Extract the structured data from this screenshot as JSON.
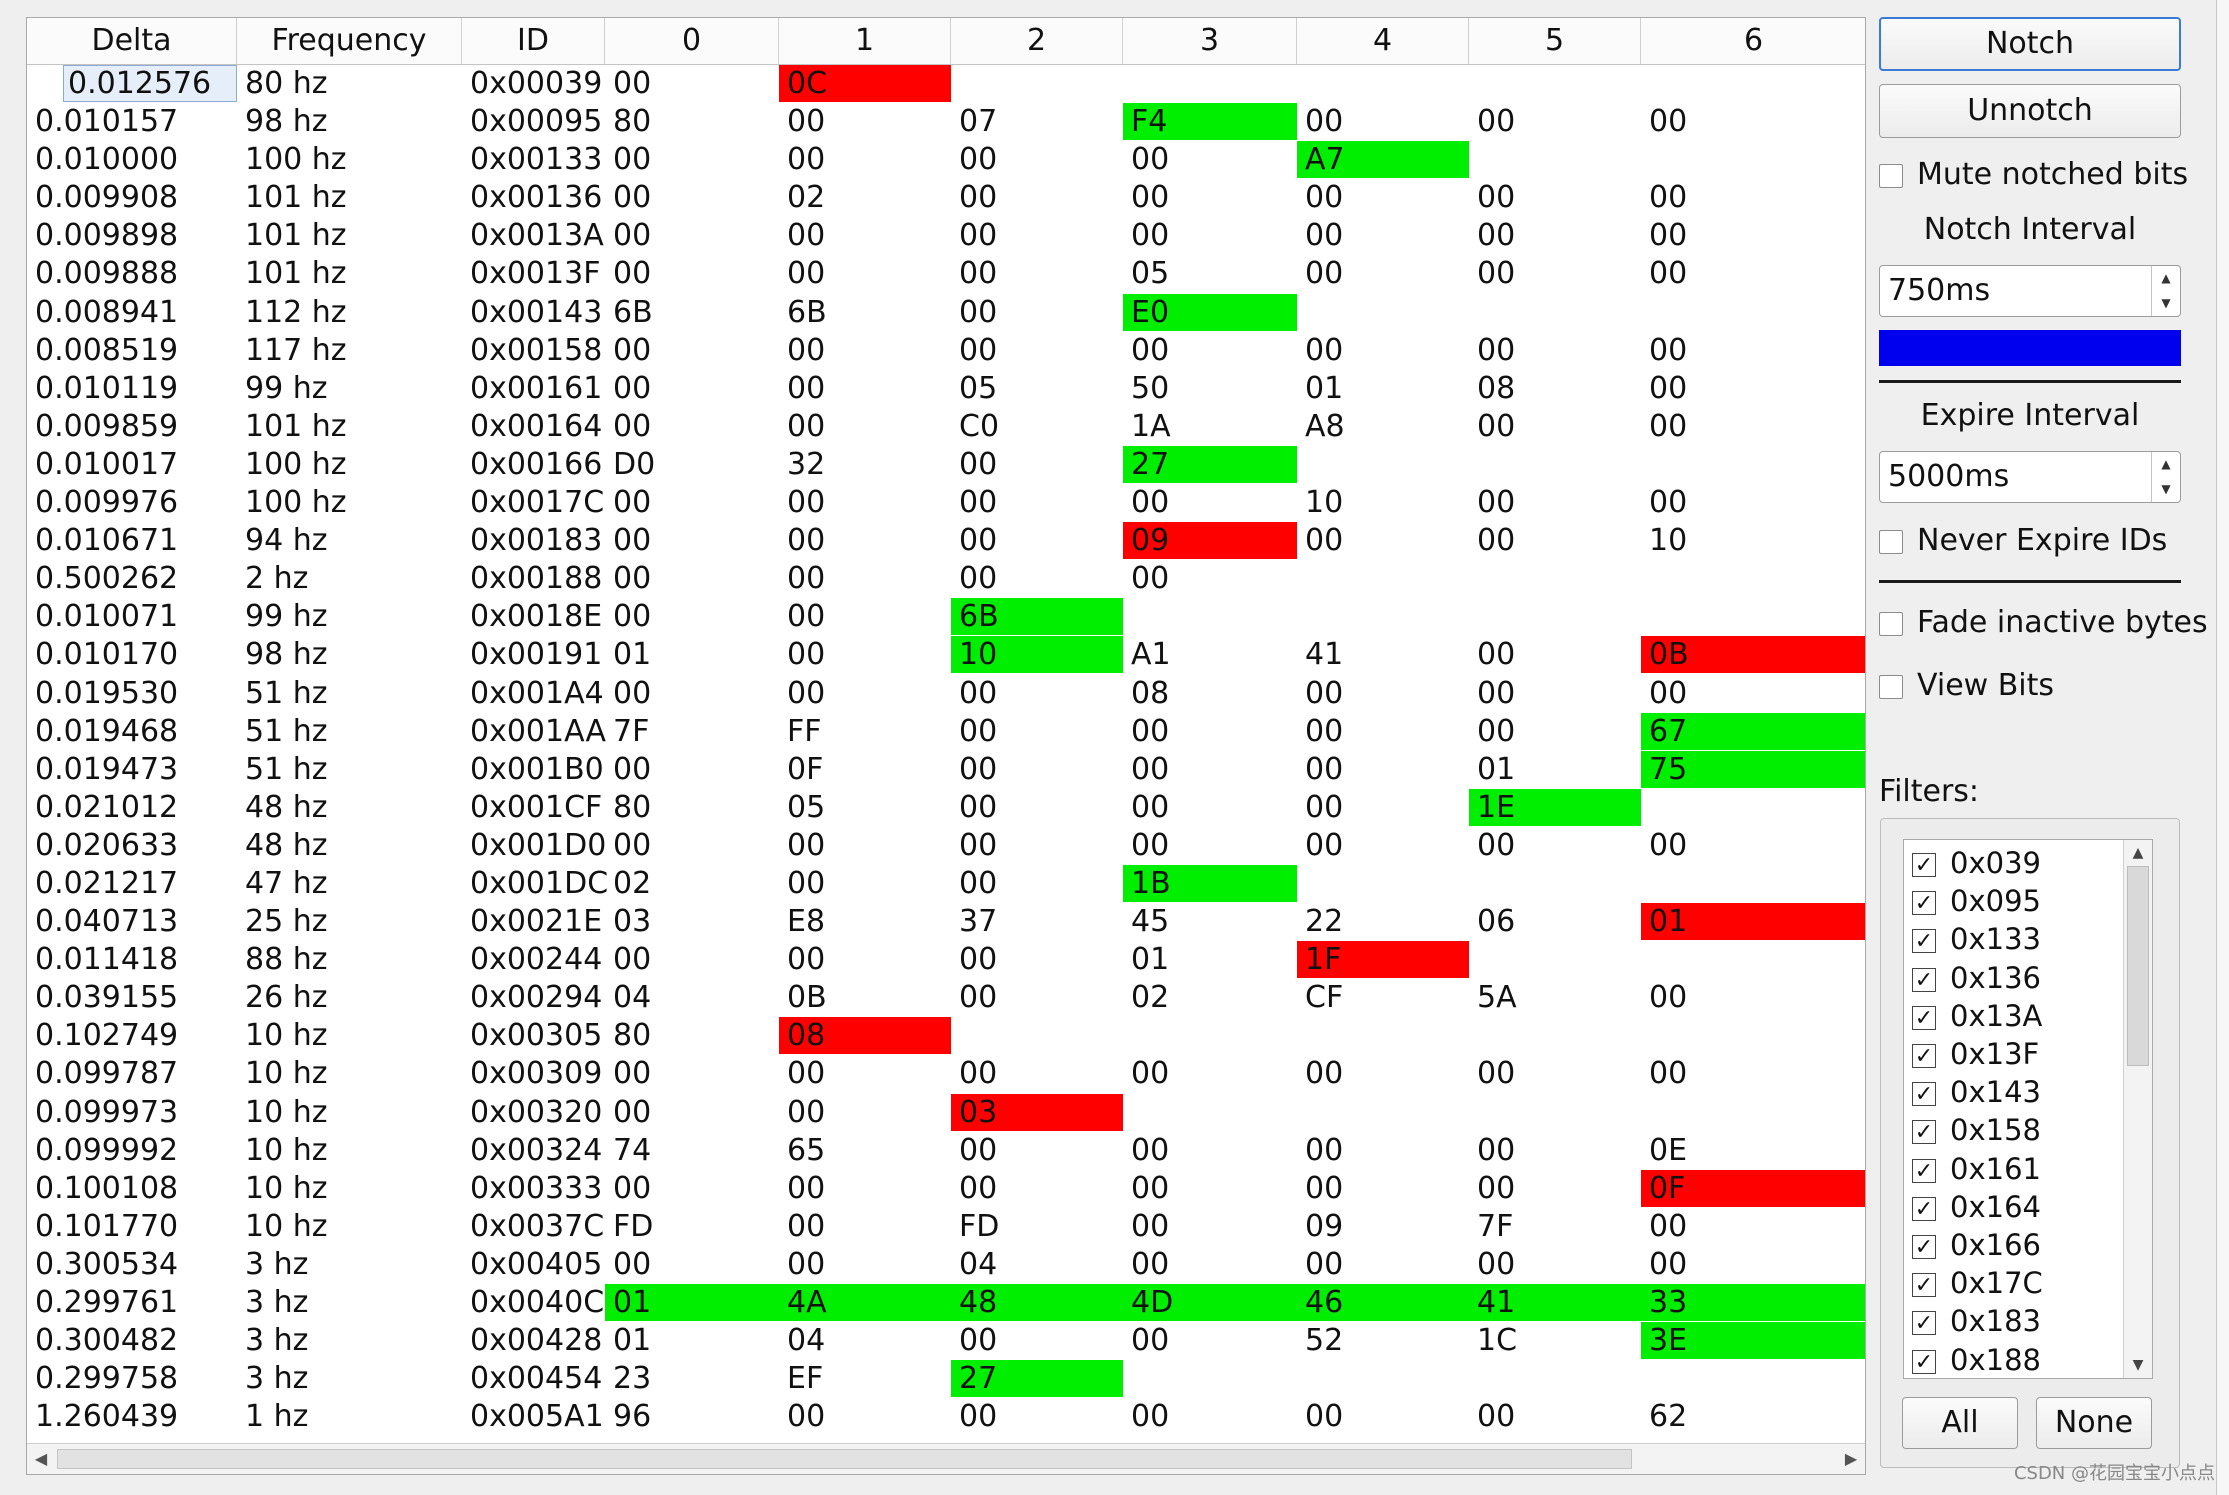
{
  "columns": [
    "Delta",
    "Frequency",
    "ID",
    "0",
    "1",
    "2",
    "3",
    "4",
    "5",
    "6"
  ],
  "rows": [
    {
      "delta": "0.012576",
      "freq": "80 hz",
      "id": "0x00039",
      "bytes": [
        [
          "00",
          ""
        ],
        [
          "0C",
          "red"
        ],
        [
          "",
          ""
        ],
        [
          "",
          ""
        ],
        [
          "",
          ""
        ],
        [
          "",
          ""
        ],
        [
          "",
          ""
        ]
      ]
    },
    {
      "delta": "0.010157",
      "freq": "98 hz",
      "id": "0x00095",
      "bytes": [
        [
          "80",
          ""
        ],
        [
          "00",
          ""
        ],
        [
          "07",
          ""
        ],
        [
          "F4",
          "green"
        ],
        [
          "00",
          ""
        ],
        [
          "00",
          ""
        ],
        [
          "00",
          ""
        ]
      ]
    },
    {
      "delta": "0.010000",
      "freq": "100 hz",
      "id": "0x00133",
      "bytes": [
        [
          "00",
          ""
        ],
        [
          "00",
          ""
        ],
        [
          "00",
          ""
        ],
        [
          "00",
          ""
        ],
        [
          "A7",
          "green"
        ],
        [
          "",
          ""
        ],
        [
          "",
          ""
        ]
      ]
    },
    {
      "delta": "0.009908",
      "freq": "101 hz",
      "id": "0x00136",
      "bytes": [
        [
          "00",
          ""
        ],
        [
          "02",
          ""
        ],
        [
          "00",
          ""
        ],
        [
          "00",
          ""
        ],
        [
          "00",
          ""
        ],
        [
          "00",
          ""
        ],
        [
          "00",
          ""
        ]
      ]
    },
    {
      "delta": "0.009898",
      "freq": "101 hz",
      "id": "0x0013A",
      "bytes": [
        [
          "00",
          ""
        ],
        [
          "00",
          ""
        ],
        [
          "00",
          ""
        ],
        [
          "00",
          ""
        ],
        [
          "00",
          ""
        ],
        [
          "00",
          ""
        ],
        [
          "00",
          ""
        ]
      ]
    },
    {
      "delta": "0.009888",
      "freq": "101 hz",
      "id": "0x0013F",
      "bytes": [
        [
          "00",
          ""
        ],
        [
          "00",
          ""
        ],
        [
          "00",
          ""
        ],
        [
          "05",
          ""
        ],
        [
          "00",
          ""
        ],
        [
          "00",
          ""
        ],
        [
          "00",
          ""
        ]
      ]
    },
    {
      "delta": "0.008941",
      "freq": "112 hz",
      "id": "0x00143",
      "bytes": [
        [
          "6B",
          ""
        ],
        [
          "6B",
          ""
        ],
        [
          "00",
          ""
        ],
        [
          "E0",
          "green"
        ],
        [
          "",
          ""
        ],
        [
          "",
          ""
        ],
        [
          "",
          ""
        ]
      ]
    },
    {
      "delta": "0.008519",
      "freq": "117 hz",
      "id": "0x00158",
      "bytes": [
        [
          "00",
          ""
        ],
        [
          "00",
          ""
        ],
        [
          "00",
          ""
        ],
        [
          "00",
          ""
        ],
        [
          "00",
          ""
        ],
        [
          "00",
          ""
        ],
        [
          "00",
          ""
        ]
      ]
    },
    {
      "delta": "0.010119",
      "freq": "99 hz",
      "id": "0x00161",
      "bytes": [
        [
          "00",
          ""
        ],
        [
          "00",
          ""
        ],
        [
          "05",
          ""
        ],
        [
          "50",
          ""
        ],
        [
          "01",
          ""
        ],
        [
          "08",
          ""
        ],
        [
          "00",
          ""
        ]
      ]
    },
    {
      "delta": "0.009859",
      "freq": "101 hz",
      "id": "0x00164",
      "bytes": [
        [
          "00",
          ""
        ],
        [
          "00",
          ""
        ],
        [
          "C0",
          ""
        ],
        [
          "1A",
          ""
        ],
        [
          "A8",
          ""
        ],
        [
          "00",
          ""
        ],
        [
          "00",
          ""
        ]
      ]
    },
    {
      "delta": "0.010017",
      "freq": "100 hz",
      "id": "0x00166",
      "bytes": [
        [
          "D0",
          ""
        ],
        [
          "32",
          ""
        ],
        [
          "00",
          ""
        ],
        [
          "27",
          "green"
        ],
        [
          "",
          ""
        ],
        [
          "",
          ""
        ],
        [
          "",
          ""
        ]
      ]
    },
    {
      "delta": "0.009976",
      "freq": "100 hz",
      "id": "0x0017C",
      "bytes": [
        [
          "00",
          ""
        ],
        [
          "00",
          ""
        ],
        [
          "00",
          ""
        ],
        [
          "00",
          ""
        ],
        [
          "10",
          ""
        ],
        [
          "00",
          ""
        ],
        [
          "00",
          ""
        ]
      ]
    },
    {
      "delta": "0.010671",
      "freq": "94 hz",
      "id": "0x00183",
      "bytes": [
        [
          "00",
          ""
        ],
        [
          "00",
          ""
        ],
        [
          "00",
          ""
        ],
        [
          "09",
          "red"
        ],
        [
          "00",
          ""
        ],
        [
          "00",
          ""
        ],
        [
          "10",
          ""
        ]
      ]
    },
    {
      "delta": "0.500262",
      "freq": "2 hz",
      "id": "0x00188",
      "bytes": [
        [
          "00",
          ""
        ],
        [
          "00",
          ""
        ],
        [
          "00",
          ""
        ],
        [
          "00",
          ""
        ],
        [
          "",
          ""
        ],
        [
          "",
          ""
        ],
        [
          "",
          ""
        ]
      ]
    },
    {
      "delta": "0.010071",
      "freq": "99 hz",
      "id": "0x0018E",
      "bytes": [
        [
          "00",
          ""
        ],
        [
          "00",
          ""
        ],
        [
          "6B",
          "green"
        ],
        [
          "",
          ""
        ],
        [
          "",
          ""
        ],
        [
          "",
          ""
        ],
        [
          "",
          ""
        ]
      ]
    },
    {
      "delta": "0.010170",
      "freq": "98 hz",
      "id": "0x00191",
      "bytes": [
        [
          "01",
          ""
        ],
        [
          "00",
          ""
        ],
        [
          "10",
          "green"
        ],
        [
          "A1",
          ""
        ],
        [
          "41",
          ""
        ],
        [
          "00",
          ""
        ],
        [
          "0B",
          "red"
        ]
      ]
    },
    {
      "delta": "0.019530",
      "freq": "51 hz",
      "id": "0x001A4",
      "bytes": [
        [
          "00",
          ""
        ],
        [
          "00",
          ""
        ],
        [
          "00",
          ""
        ],
        [
          "08",
          ""
        ],
        [
          "00",
          ""
        ],
        [
          "00",
          ""
        ],
        [
          "00",
          ""
        ]
      ]
    },
    {
      "delta": "0.019468",
      "freq": "51 hz",
      "id": "0x001AA",
      "bytes": [
        [
          "7F",
          ""
        ],
        [
          "FF",
          ""
        ],
        [
          "00",
          ""
        ],
        [
          "00",
          ""
        ],
        [
          "00",
          ""
        ],
        [
          "00",
          ""
        ],
        [
          "67",
          "green"
        ]
      ]
    },
    {
      "delta": "0.019473",
      "freq": "51 hz",
      "id": "0x001B0",
      "bytes": [
        [
          "00",
          ""
        ],
        [
          "0F",
          ""
        ],
        [
          "00",
          ""
        ],
        [
          "00",
          ""
        ],
        [
          "00",
          ""
        ],
        [
          "01",
          ""
        ],
        [
          "75",
          "green"
        ]
      ]
    },
    {
      "delta": "0.021012",
      "freq": "48 hz",
      "id": "0x001CF",
      "bytes": [
        [
          "80",
          ""
        ],
        [
          "05",
          ""
        ],
        [
          "00",
          ""
        ],
        [
          "00",
          ""
        ],
        [
          "00",
          ""
        ],
        [
          "1E",
          "green"
        ],
        [
          "",
          ""
        ]
      ]
    },
    {
      "delta": "0.020633",
      "freq": "48 hz",
      "id": "0x001D0",
      "bytes": [
        [
          "00",
          ""
        ],
        [
          "00",
          ""
        ],
        [
          "00",
          ""
        ],
        [
          "00",
          ""
        ],
        [
          "00",
          ""
        ],
        [
          "00",
          ""
        ],
        [
          "00",
          ""
        ]
      ]
    },
    {
      "delta": "0.021217",
      "freq": "47 hz",
      "id": "0x001DC",
      "bytes": [
        [
          "02",
          ""
        ],
        [
          "00",
          ""
        ],
        [
          "00",
          ""
        ],
        [
          "1B",
          "green"
        ],
        [
          "",
          ""
        ],
        [
          "",
          ""
        ],
        [
          "",
          ""
        ]
      ]
    },
    {
      "delta": "0.040713",
      "freq": "25 hz",
      "id": "0x0021E",
      "bytes": [
        [
          "03",
          ""
        ],
        [
          "E8",
          ""
        ],
        [
          "37",
          ""
        ],
        [
          "45",
          ""
        ],
        [
          "22",
          ""
        ],
        [
          "06",
          ""
        ],
        [
          "01",
          "red"
        ]
      ]
    },
    {
      "delta": "0.011418",
      "freq": "88 hz",
      "id": "0x00244",
      "bytes": [
        [
          "00",
          ""
        ],
        [
          "00",
          ""
        ],
        [
          "00",
          ""
        ],
        [
          "01",
          ""
        ],
        [
          "1F",
          "red"
        ],
        [
          "",
          ""
        ],
        [
          "",
          ""
        ]
      ]
    },
    {
      "delta": "0.039155",
      "freq": "26 hz",
      "id": "0x00294",
      "bytes": [
        [
          "04",
          ""
        ],
        [
          "0B",
          ""
        ],
        [
          "00",
          ""
        ],
        [
          "02",
          ""
        ],
        [
          "CF",
          ""
        ],
        [
          "5A",
          ""
        ],
        [
          "00",
          ""
        ]
      ]
    },
    {
      "delta": "0.102749",
      "freq": "10 hz",
      "id": "0x00305",
      "bytes": [
        [
          "80",
          ""
        ],
        [
          "08",
          "red"
        ],
        [
          "",
          ""
        ],
        [
          "",
          ""
        ],
        [
          "",
          ""
        ],
        [
          "",
          ""
        ],
        [
          "",
          ""
        ]
      ]
    },
    {
      "delta": "0.099787",
      "freq": "10 hz",
      "id": "0x00309",
      "bytes": [
        [
          "00",
          ""
        ],
        [
          "00",
          ""
        ],
        [
          "00",
          ""
        ],
        [
          "00",
          ""
        ],
        [
          "00",
          ""
        ],
        [
          "00",
          ""
        ],
        [
          "00",
          ""
        ]
      ]
    },
    {
      "delta": "0.099973",
      "freq": "10 hz",
      "id": "0x00320",
      "bytes": [
        [
          "00",
          ""
        ],
        [
          "00",
          ""
        ],
        [
          "03",
          "red"
        ],
        [
          "",
          ""
        ],
        [
          "",
          ""
        ],
        [
          "",
          ""
        ],
        [
          "",
          ""
        ]
      ]
    },
    {
      "delta": "0.099992",
      "freq": "10 hz",
      "id": "0x00324",
      "bytes": [
        [
          "74",
          ""
        ],
        [
          "65",
          ""
        ],
        [
          "00",
          ""
        ],
        [
          "00",
          ""
        ],
        [
          "00",
          ""
        ],
        [
          "00",
          ""
        ],
        [
          "0E",
          ""
        ]
      ]
    },
    {
      "delta": "0.100108",
      "freq": "10 hz",
      "id": "0x00333",
      "bytes": [
        [
          "00",
          ""
        ],
        [
          "00",
          ""
        ],
        [
          "00",
          ""
        ],
        [
          "00",
          ""
        ],
        [
          "00",
          ""
        ],
        [
          "00",
          ""
        ],
        [
          "0F",
          "red"
        ]
      ]
    },
    {
      "delta": "0.101770",
      "freq": "10 hz",
      "id": "0x0037C",
      "bytes": [
        [
          "FD",
          ""
        ],
        [
          "00",
          ""
        ],
        [
          "FD",
          ""
        ],
        [
          "00",
          ""
        ],
        [
          "09",
          ""
        ],
        [
          "7F",
          ""
        ],
        [
          "00",
          ""
        ]
      ]
    },
    {
      "delta": "0.300534",
      "freq": "3 hz",
      "id": "0x00405",
      "bytes": [
        [
          "00",
          ""
        ],
        [
          "00",
          ""
        ],
        [
          "04",
          ""
        ],
        [
          "00",
          ""
        ],
        [
          "00",
          ""
        ],
        [
          "00",
          ""
        ],
        [
          "00",
          ""
        ]
      ]
    },
    {
      "delta": "0.299761",
      "freq": "3 hz",
      "id": "0x0040C",
      "bytes": [
        [
          "01",
          "green"
        ],
        [
          "4A",
          "green"
        ],
        [
          "48",
          "green"
        ],
        [
          "4D",
          "green"
        ],
        [
          "46",
          "green"
        ],
        [
          "41",
          "green"
        ],
        [
          "33",
          "green"
        ]
      ]
    },
    {
      "delta": "0.300482",
      "freq": "3 hz",
      "id": "0x00428",
      "bytes": [
        [
          "01",
          ""
        ],
        [
          "04",
          ""
        ],
        [
          "00",
          ""
        ],
        [
          "00",
          ""
        ],
        [
          "52",
          ""
        ],
        [
          "1C",
          ""
        ],
        [
          "3E",
          "green"
        ]
      ]
    },
    {
      "delta": "0.299758",
      "freq": "3 hz",
      "id": "0x00454",
      "bytes": [
        [
          "23",
          ""
        ],
        [
          "EF",
          ""
        ],
        [
          "27",
          "green"
        ],
        [
          "",
          ""
        ],
        [
          "",
          ""
        ],
        [
          "",
          ""
        ],
        [
          "",
          ""
        ]
      ]
    },
    {
      "delta": "1.260439",
      "freq": "1 hz",
      "id": "0x005A1",
      "bytes": [
        [
          "96",
          ""
        ],
        [
          "00",
          ""
        ],
        [
          "00",
          ""
        ],
        [
          "00",
          ""
        ],
        [
          "00",
          ""
        ],
        [
          "00",
          ""
        ],
        [
          "62",
          ""
        ]
      ]
    }
  ],
  "buttons": {
    "notch": "Notch",
    "unnotch": "Unnotch",
    "all": "All",
    "none": "None"
  },
  "options": {
    "mute_notched_bits": "Mute notched bits",
    "never_expire_ids": "Never Expire IDs",
    "fade_inactive_bytes": "Fade inactive bytes",
    "view_bits": "View Bits"
  },
  "notch_interval": {
    "label": "Notch Interval",
    "value": "750ms"
  },
  "expire_interval": {
    "label": "Expire Interval",
    "value": "5000ms"
  },
  "filters": {
    "label": "Filters:",
    "items": [
      "0x039",
      "0x095",
      "0x133",
      "0x136",
      "0x13A",
      "0x13F",
      "0x143",
      "0x158",
      "0x161",
      "0x164",
      "0x166",
      "0x17C",
      "0x183",
      "0x188"
    ]
  },
  "colors": {
    "green": "#00ee00",
    "red": "#ff0000",
    "notch_color": "#0000ee"
  },
  "watermark": "CSDN @花园宝宝小点点"
}
